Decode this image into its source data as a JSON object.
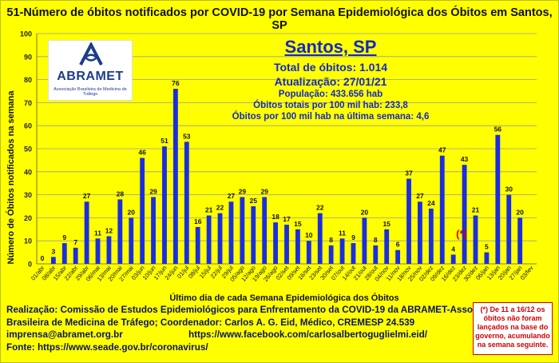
{
  "title": "51-Número de óbitos notificados por COVID-19 por Semana Epidemiológica dos Óbitos  em Santos, SP",
  "logo": {
    "brand": "ABRAMET",
    "subtitle": "Associação Brasileira de Medicina de Tráfego"
  },
  "info": {
    "city": "Santos, SP",
    "total": "Total de óbitos: 1.014",
    "update": "Atualização: 27/01/21",
    "population": "População: 433.656 hab",
    "rate_total": "Óbitos totais por 100 mil hab: 233,8",
    "rate_last": "Óbitos por 100 mil hab na última semana: 4,6"
  },
  "asterisk_label": "(*)",
  "footer": {
    "line1": "Realização: Comissão de Estudos Epidemiológicos para Enfrentamento da COVID-19 da ABRAMET-Associação",
    "line2": "Brasileira de Medicina de Tráfego; Coordenador: Carlos A. G. Eid, Médico, CREMESP 24.539",
    "email": "imprensa@abramet.org.br",
    "facebook": "https://www.facebook.com/carlosalbertoguglielmi.eid/",
    "source": "Fonte: https://www.seade.gov.br/coronavirus/"
  },
  "note": "(*) De 11 a 16/12 os óbitos não foram lançados na base do governo, acumulando na semana seguinte.",
  "colors": {
    "background": "#ffff00",
    "bar": "#1a2ee0",
    "text_blue": "#1428c8",
    "note_red": "#d00000"
  },
  "chart_data": {
    "type": "bar",
    "xlabel": "Último dia de cada Semana Epidemiológica dos Óbitos",
    "ylabel": "Número de Óbitos notificados na semana",
    "ylim": [
      0,
      100
    ],
    "yticks": [
      0,
      10,
      20,
      30,
      40,
      50,
      60,
      70,
      80,
      90,
      100
    ],
    "grid": true,
    "categories": [
      "01/abr",
      "08/abr",
      "15/abr",
      "22/abr",
      "29/abr",
      "06/mai",
      "13/mai",
      "20/mai",
      "27/mai",
      "03/jun",
      "10/jun",
      "17/jun",
      "24/jun",
      "01/jul",
      "08/jul",
      "15/jul",
      "22/jul",
      "29/jul",
      "05/ago",
      "12/ago",
      "19/ago",
      "26/ago",
      "02/set",
      "09/set",
      "16/set",
      "23/set",
      "30/set",
      "07/out",
      "14/out",
      "21/out",
      "28/out",
      "04/nov",
      "11/nov",
      "18/nov",
      "25/nov",
      "02/dez",
      "09/dez",
      "16/dez",
      "23/dez",
      "30/dez",
      "06/jan",
      "13/jan",
      "20/jan",
      "27/jan",
      "03/fev"
    ],
    "values": [
      0,
      3,
      9,
      7,
      27,
      11,
      12,
      28,
      20,
      46,
      29,
      51,
      76,
      53,
      16,
      21,
      22,
      27,
      29,
      25,
      29,
      18,
      17,
      15,
      10,
      22,
      8,
      11,
      9,
      20,
      8,
      15,
      6,
      37,
      27,
      24,
      47,
      4,
      43,
      21,
      5,
      56,
      30,
      20,
      null
    ]
  }
}
